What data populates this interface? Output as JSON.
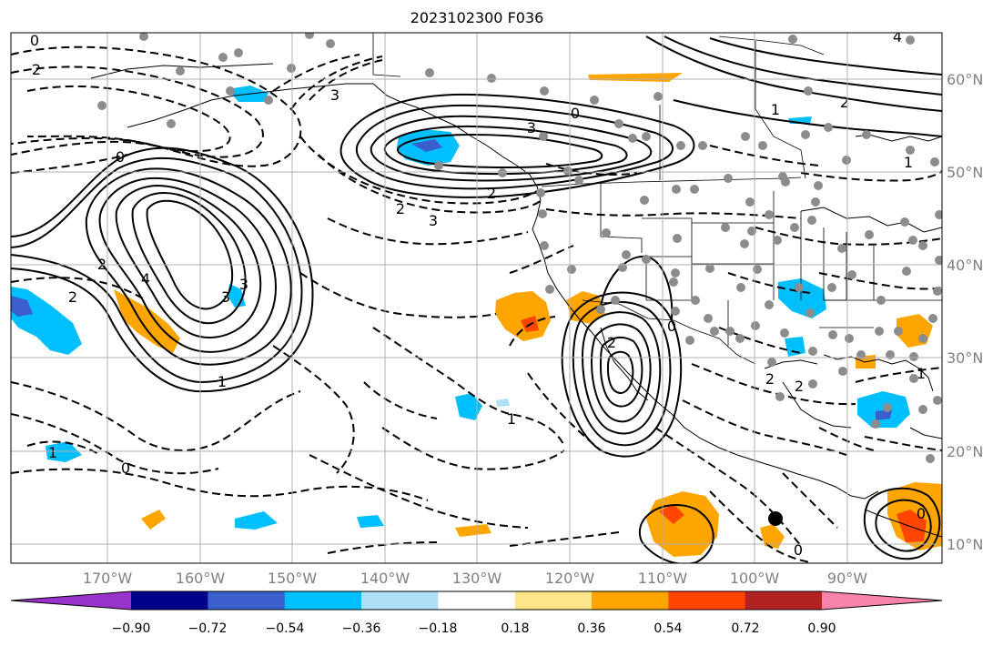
{
  "title": "2023102300 F036",
  "lon_labels": [
    "170°W",
    "160°W",
    "150°W",
    "140°W",
    "130°W",
    "120°W",
    "110°W",
    "100°W",
    "90°W"
  ],
  "lat_labels": [
    "60°N",
    "50°N",
    "40°N",
    "30°N",
    "20°N",
    "10°N"
  ],
  "colorbar": {
    "tick_labels": [
      "−0.90",
      "−0.72",
      "−0.54",
      "−0.36",
      "−0.18",
      "0.18",
      "0.36",
      "0.54",
      "0.72",
      "0.90"
    ],
    "colors": [
      "#9932cc",
      "#00008b",
      "#3a5fcd",
      "#00bfff",
      "#b0e0f8",
      "#ffffff",
      "#fde68a",
      "#ffa500",
      "#ff4500",
      "#b22222",
      "#f783ac"
    ]
  },
  "contour_labels": [
    "0",
    "2",
    "3",
    "0",
    "2",
    "3",
    "0",
    "1",
    "2",
    "1",
    "2",
    "3",
    "4",
    "2",
    "3",
    "1",
    "2",
    "3",
    "1",
    "0",
    "0",
    "2",
    "1",
    "2",
    "0",
    "2",
    "1",
    "0",
    "4"
  ],
  "colors": {
    "positive_fill": "#ffa500",
    "negative_fill": "#00bfff",
    "contour": "#000000",
    "station": "#8c8c8c"
  }
}
